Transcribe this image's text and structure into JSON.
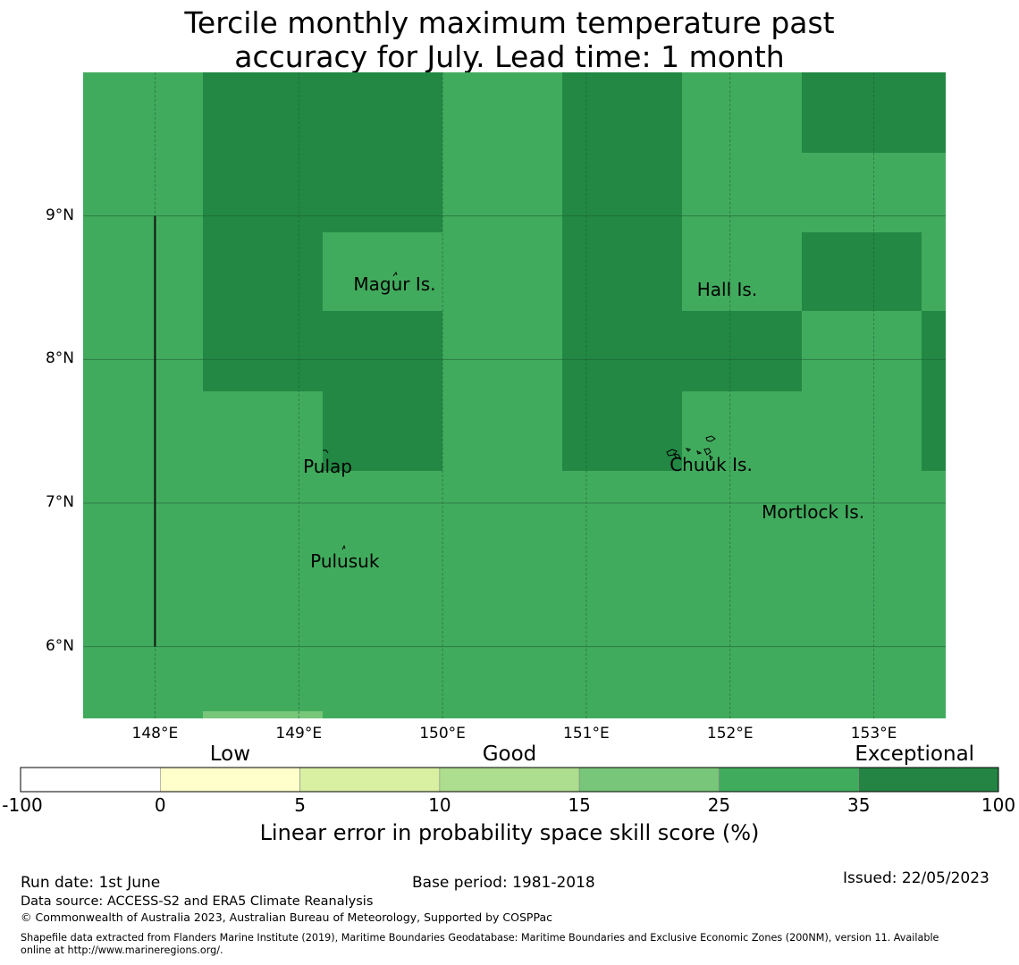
{
  "title": {
    "line1": "Tercile monthly maximum temperature past",
    "line2": "accuracy for July. Lead time: 1 month"
  },
  "map": {
    "lon_range": [
      147.5,
      153.5
    ],
    "lat_range": [
      5.5,
      10.0
    ],
    "cell_colors": {
      "exceptional": "#228844",
      "good_high": "#41ab5d",
      "good_mid": "#78c679"
    },
    "lat_ticks": [
      {
        "value": 9,
        "label": "9°N"
      },
      {
        "value": 8,
        "label": "8°N"
      },
      {
        "value": 7,
        "label": "7°N"
      },
      {
        "value": 6,
        "label": "6°N"
      }
    ],
    "lon_ticks": [
      {
        "value": 148,
        "label": "148°E"
      },
      {
        "value": 149,
        "label": "149°E"
      },
      {
        "value": 150,
        "label": "150°E"
      },
      {
        "value": 151,
        "label": "151°E"
      },
      {
        "value": 152,
        "label": "152°E"
      },
      {
        "value": 153,
        "label": "153°E"
      }
    ],
    "places": [
      {
        "name": "Magur Is.",
        "lon": 149.38,
        "lat": 8.52
      },
      {
        "name": "Hall Is.",
        "lon": 151.77,
        "lat": 8.48
      },
      {
        "name": "Pulap",
        "lon": 149.03,
        "lat": 7.25
      },
      {
        "name": "Chuuk Is.",
        "lon": 151.58,
        "lat": 7.26
      },
      {
        "name": "Mortlock Is.",
        "lon": 152.22,
        "lat": 6.93
      },
      {
        "name": "Pulusuk",
        "lon": 149.08,
        "lat": 6.59
      }
    ],
    "boundary_line": {
      "lon": 148.0,
      "lat_from": 6.0,
      "lat_to": 9.0
    }
  },
  "colorbar": {
    "categories": [
      {
        "label": "Low",
        "center": 1.5
      },
      {
        "label": "Good",
        "center": 3.5
      },
      {
        "label": "Exceptional",
        "center": 6.4
      }
    ],
    "ticks": [
      "-100",
      "0",
      "5",
      "10",
      "15",
      "25",
      "35",
      "100"
    ],
    "colors": [
      "#ffffff",
      "#ffffcc",
      "#d9f0a3",
      "#addd8e",
      "#78c679",
      "#41ab5d",
      "#238443"
    ],
    "title": "Linear error in probability space skill score (%)"
  },
  "footer": {
    "run_date": "Run date: 1st June",
    "base_period": "Base period: 1981-2018",
    "issued": "Issued: 22/05/2023",
    "data_source": "Data source: ACCESS-S2 and ERA5 Climate Reanalysis",
    "copyright": "© Commonwealth of Australia 2023, Australian Bureau of Meteorology, Supported by COSPPac",
    "shapefile_line1": "Shapefile data extracted from Flanders Marine Institute (2019), Maritime Boundaries Geodatabase: Maritime Boundaries and Exclusive Economic Zones (200NM), version 11. Available",
    "shapefile_line2": "online at http://www.marineregions.org/."
  }
}
